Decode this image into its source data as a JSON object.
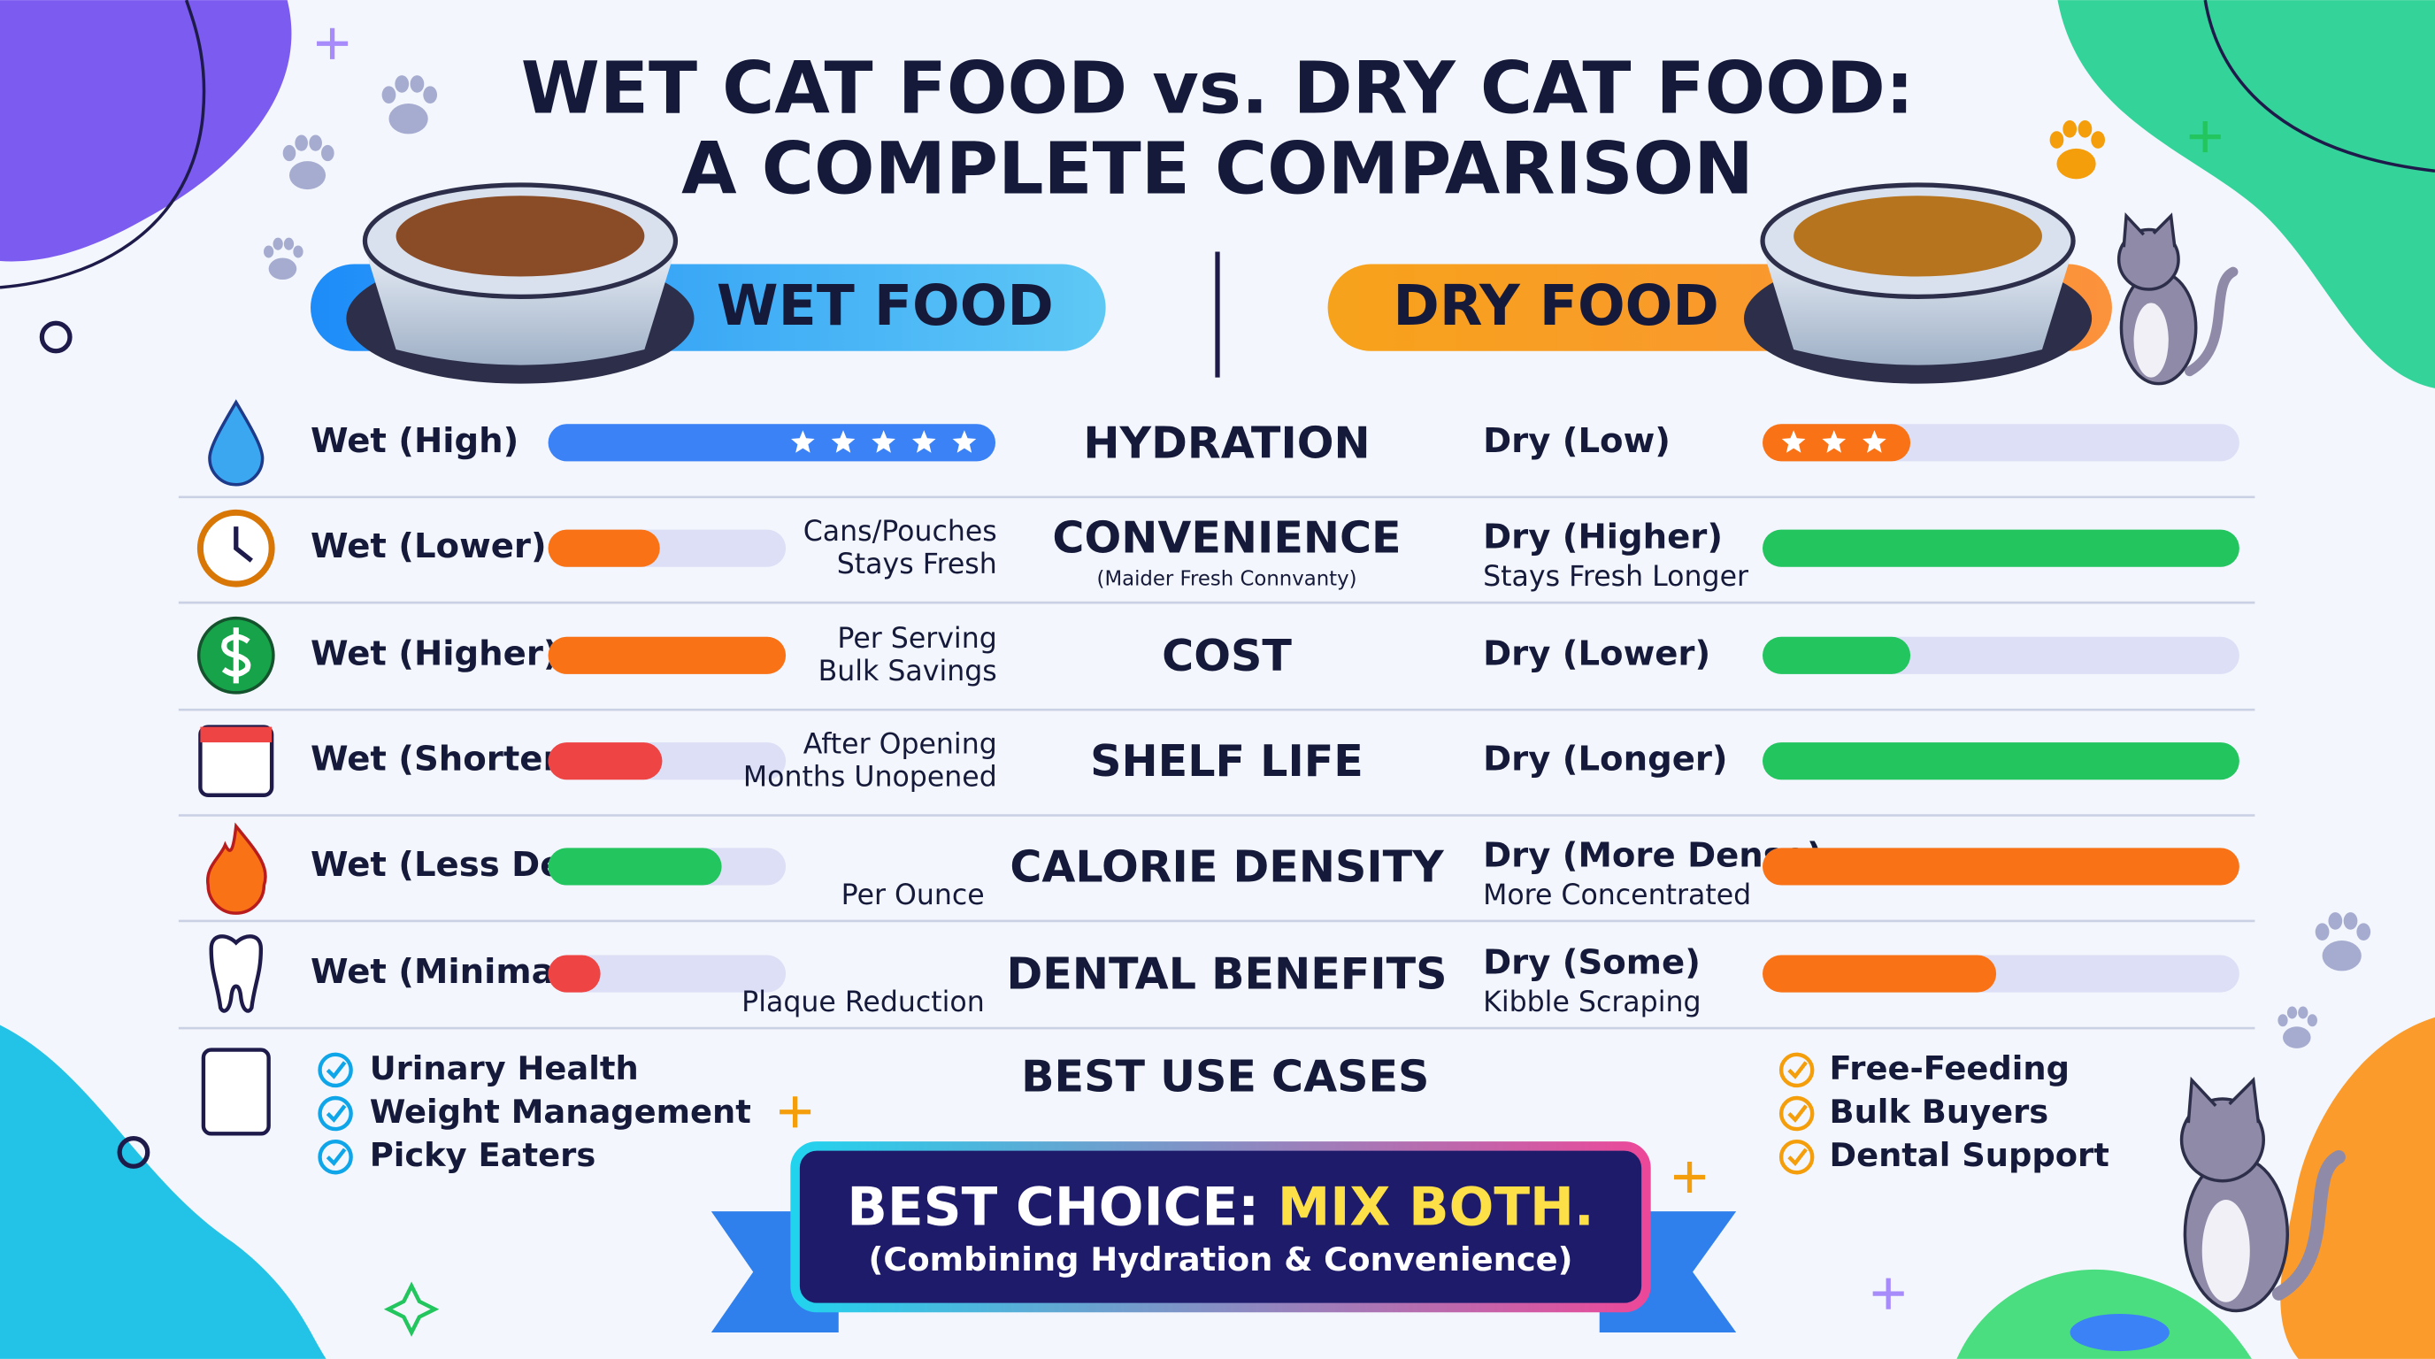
{
  "title": [
    "WET CAT FOOD vs. DRY CAT FOOD:",
    "A COMPLETE COMPARISON"
  ],
  "wet_header": "WET FOOD",
  "dry_header": "DRY FOOD",
  "rows": [
    {
      "category": "HYDRATION",
      "wet": {
        "label": "Wet (High)",
        "fill": 100,
        "stars": 5,
        "color": "#3b82f6"
      },
      "dry": {
        "label": "Dry (Low)",
        "fill": 31,
        "stars": 3,
        "color": "#f97316"
      }
    },
    {
      "category": "CONVENIENCE",
      "category_note": "(Maider Fresh Connvanty)",
      "wet": {
        "label": "Wet (Lower)",
        "fill": 47,
        "color": "#f97316",
        "notes": [
          "Cans/Pouches",
          "Stays Fresh"
        ]
      },
      "dry": {
        "label": "Dry (Higher)",
        "fill": 100,
        "color": "#22c55e",
        "note": "Stays Fresh Longer"
      }
    },
    {
      "category": "COST",
      "wet": {
        "label": "Wet (Higher)",
        "fill": 100,
        "color": "#f97316",
        "notes": [
          "Per Serving",
          "Bulk Savings"
        ]
      },
      "dry": {
        "label": "Dry (Lower)",
        "fill": 31,
        "color": "#22c55e"
      }
    },
    {
      "category": "SHELF LIFE",
      "wet": {
        "label": "Wet (Shorter)",
        "fill": 48,
        "color": "#ef4444",
        "notes": [
          "After Opening",
          "Months Unopened"
        ]
      },
      "dry": {
        "label": "Dry (Longer)",
        "fill": 100,
        "color": "#22c55e"
      }
    },
    {
      "category": "CALORIE DENSITY",
      "wet": {
        "label": "Wet (Less Dense)",
        "fill": 73,
        "color": "#22c55e",
        "notes": [
          "Per Ounce"
        ]
      },
      "dry": {
        "label": "Dry (More Dense)",
        "fill": 100,
        "color": "#f97316",
        "note": "More Concentrated"
      }
    },
    {
      "category": "DENTAL BENEFITS",
      "wet": {
        "label": "Wet (Minimal)",
        "fill": 22,
        "color": "#ef4444",
        "notes": [
          "Plaque Reduction"
        ]
      },
      "dry": {
        "label": "Dry (Some)",
        "fill": 49,
        "color": "#f97316",
        "note": "Kibble Scraping"
      }
    }
  ],
  "use_cases": {
    "title": "BEST USE CASES",
    "wet": [
      "Urinary Health",
      "Weight Management",
      "Picky Eaters"
    ],
    "dry": [
      "Free-Feeding",
      "Bulk Buyers",
      "Dental Support"
    ]
  },
  "banner": {
    "lead": "BEST CHOICE: ",
    "highlight": "MIX BOTH.",
    "subtitle": "(Combining Hydration & Convenience)"
  }
}
